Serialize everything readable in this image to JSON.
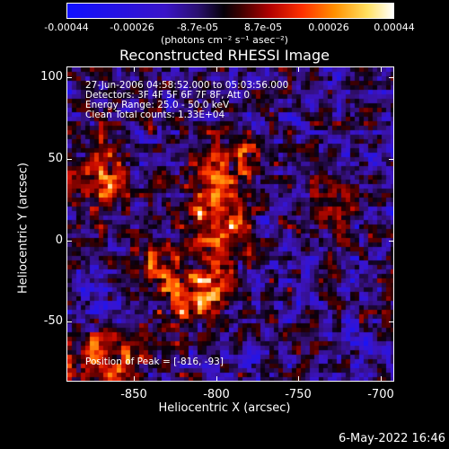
{
  "colorbar": {
    "labels": [
      "-0.00044",
      "-0.00026",
      "-8.7e-05",
      "8.7e-05",
      "0.00026",
      "0.00044"
    ],
    "units": "(photons cm⁻² s⁻¹ asec⁻²)"
  },
  "title": "Reconstructed RHESSI Image",
  "info": {
    "time": "27-Jun-2006 04:58:52.000 to 05:03:56.000",
    "detectors": "Detectors: 3F 4F 5F 6F 7F 8F, Att 0",
    "energy": "Energy Range: 25.0 - 50.0 keV",
    "clean": "Clean     Total counts: 1.33E+04",
    "peak": "Position of Peak = [-816, -93]"
  },
  "axes": {
    "xlabel": "Heliocentric X (arcsec)",
    "ylabel": "Heliocentric Y (arcsec)",
    "xticks": [
      "-850",
      "-800",
      "-750",
      "-700"
    ],
    "yticks": [
      "100",
      "50",
      "0",
      "-50"
    ]
  },
  "datestamp": "6-May-2022 16:46",
  "colors": {
    "background": "#000000",
    "foreground": "#ffffff"
  }
}
